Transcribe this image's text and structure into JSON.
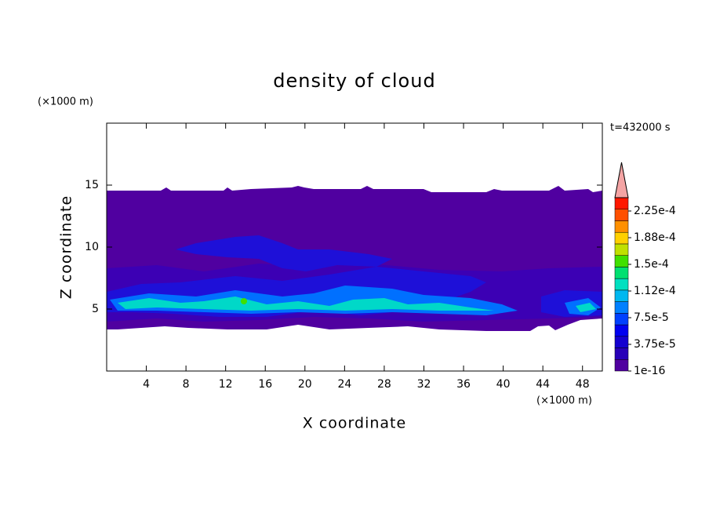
{
  "chart_data": {
    "type": "contour",
    "title": "density of cloud",
    "x_label": "X coordinate",
    "y_label": "Z coordinate",
    "x_unit": "(×1000 m)",
    "y_unit": "(×1000 m)",
    "annotation": "t=432000 s",
    "xlim": [
      0,
      50
    ],
    "xticks": [
      4,
      8,
      12,
      16,
      20,
      24,
      28,
      32,
      36,
      40,
      44,
      48
    ],
    "ylim": [
      0,
      20
    ],
    "yticks": [
      5,
      10,
      15
    ],
    "colorbar": {
      "clim": [
        1e-16,
        0.00024375
      ],
      "ticks": [
        {
          "value": 1e-16,
          "label": "1e-16"
        },
        {
          "value": 3.75e-05,
          "label": "3.75e-5"
        },
        {
          "value": 7.5e-05,
          "label": "7.5e-5"
        },
        {
          "value": 0.0001125,
          "label": "1.12e-4"
        },
        {
          "value": 0.00015,
          "label": "1.5e-4"
        },
        {
          "value": 0.0001875,
          "label": "1.88e-4"
        },
        {
          "value": 0.000225,
          "label": "2.25e-4"
        }
      ],
      "colors": [
        "#5000a0",
        "#2800b8",
        "#1400d0",
        "#0000f0",
        "#0040ff",
        "#0080ff",
        "#00b8f0",
        "#00e0c0",
        "#00e070",
        "#40e000",
        "#c0e000",
        "#ffd000",
        "#ff9000",
        "#ff5000",
        "#ff1800"
      ],
      "extend_color": "#f4a4a4"
    }
  }
}
